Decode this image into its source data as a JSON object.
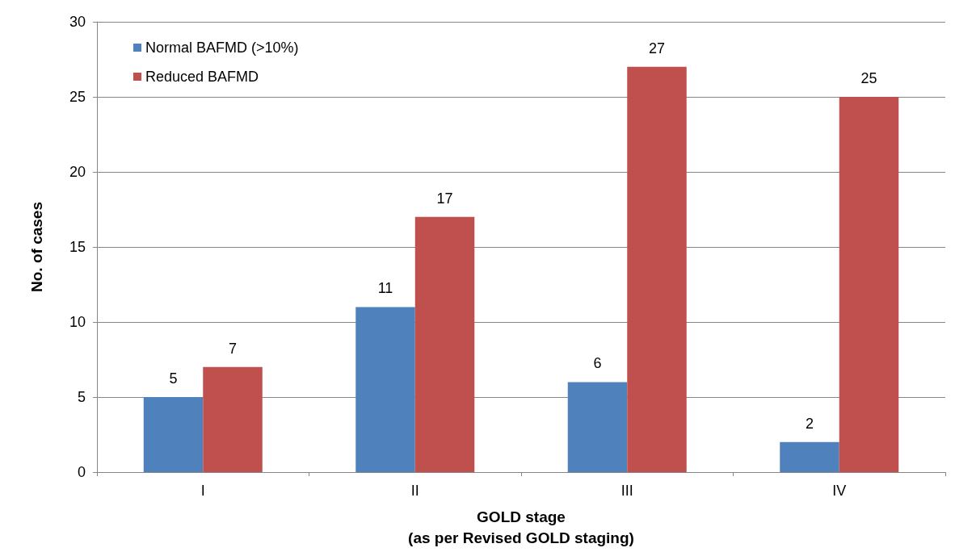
{
  "chart_data": {
    "type": "bar",
    "xlabel": "GOLD stage\n(as per Revised GOLD staging)",
    "ylabel": "No. of cases",
    "categories": [
      "I",
      "II",
      "III",
      "IV"
    ],
    "series": [
      {
        "name": "Normal BAFMD (>10%)",
        "color": "#4f81bd",
        "values": [
          5,
          11,
          6,
          2
        ]
      },
      {
        "name": "Reduced BAFMD",
        "color": "#c0504d",
        "values": [
          7,
          17,
          27,
          25
        ]
      }
    ],
    "ylim": [
      0,
      30
    ],
    "yticks": [
      0,
      5,
      10,
      15,
      20,
      25,
      30
    ],
    "grid": "y",
    "legend": "top left",
    "data_labels": true
  }
}
